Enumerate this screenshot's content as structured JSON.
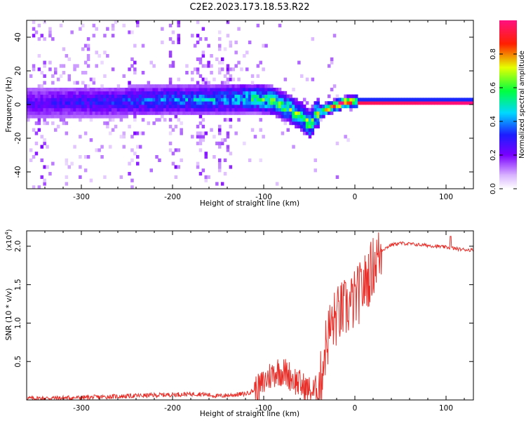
{
  "title": "C2E2.2023.173.18.53.R22",
  "colorbar": {
    "label": "Normalized spectral amplitude",
    "ticks": [
      "0.0",
      "0.2",
      "0.4",
      "0.6",
      "0.8"
    ],
    "tick_values": [
      0.0,
      0.2,
      0.4,
      0.6,
      0.8
    ],
    "range": [
      0,
      1
    ]
  },
  "chart_data": [
    {
      "type": "heatmap",
      "title": "",
      "xlabel": "Height of straight line (km)",
      "ylabel": "Frequency (Hz)",
      "xlim": [
        -360,
        130
      ],
      "ylim": [
        -50,
        50
      ],
      "xticks": [
        -300,
        -200,
        -100,
        0,
        100
      ],
      "xtick_labels": [
        "-300",
        "-200",
        "-100",
        "0",
        "100"
      ],
      "yticks": [
        -40,
        -20,
        0,
        20,
        40
      ],
      "ytick_labels": [
        "-40",
        "-20",
        "0",
        "20",
        "40"
      ],
      "colormap": "rainbow (purple low, red high)",
      "ridge_center_hz": [
        {
          "x": -350,
          "y": 0
        },
        {
          "x": -250,
          "y": 1
        },
        {
          "x": -200,
          "y": 2
        },
        {
          "x": -150,
          "y": 2
        },
        {
          "x": -110,
          "y": 3
        },
        {
          "x": -90,
          "y": 1
        },
        {
          "x": -75,
          "y": -3
        },
        {
          "x": -60,
          "y": -8
        },
        {
          "x": -50,
          "y": -13
        },
        {
          "x": -45,
          "y": -7
        },
        {
          "x": -30,
          "y": -3
        },
        {
          "x": -15,
          "y": 0
        },
        {
          "x": 0,
          "y": 1
        },
        {
          "x": 130,
          "y": 0
        }
      ],
      "ridge_peak_amplitude": [
        {
          "x": -350,
          "y": 0.15
        },
        {
          "x": -150,
          "y": 0.35
        },
        {
          "x": -100,
          "y": 0.5
        },
        {
          "x": -60,
          "y": 0.55
        },
        {
          "x": -40,
          "y": 0.6
        },
        {
          "x": -20,
          "y": 0.85
        },
        {
          "x": 0,
          "y": 0.95
        },
        {
          "x": 130,
          "y": 1.0
        }
      ]
    },
    {
      "type": "line",
      "title": "",
      "xlabel": "Height of straight line (km)",
      "ylabel": "SNR (10 * v/v)",
      "multiplier": "(x10",
      "multiplier_exp": "4",
      "multiplier_close": ")",
      "xlim": [
        -360,
        130
      ],
      "ylim": [
        0,
        2.2
      ],
      "xticks": [
        -300,
        -200,
        -100,
        0,
        100
      ],
      "xtick_labels": [
        "-300",
        "-200",
        "-100",
        "0",
        "100"
      ],
      "yticks": [
        0.5,
        1.0,
        1.5,
        2.0
      ],
      "ytick_labels": [
        "0.5",
        "1.0",
        "1.5",
        "2.0"
      ],
      "color": "#e8302b",
      "series": [
        {
          "name": "",
          "x": [
            -360,
            -300,
            -250,
            -200,
            -170,
            -150,
            -120,
            -105,
            -95,
            -85,
            -75,
            -65,
            -55,
            -45,
            -38,
            -33,
            -28,
            -22,
            -15,
            -8,
            0,
            8,
            15,
            22,
            30,
            40,
            50,
            70,
            90,
            105,
            115,
            130
          ],
          "y": [
            0.02,
            0.03,
            0.05,
            0.07,
            0.08,
            0.05,
            0.08,
            0.15,
            0.3,
            0.38,
            0.35,
            0.25,
            0.15,
            0.1,
            0.2,
            0.65,
            0.9,
            1.05,
            1.15,
            1.2,
            1.3,
            1.45,
            1.6,
            1.8,
            1.95,
            2.02,
            2.04,
            2.02,
            2.0,
            1.98,
            1.96,
            1.95
          ]
        }
      ]
    }
  ]
}
